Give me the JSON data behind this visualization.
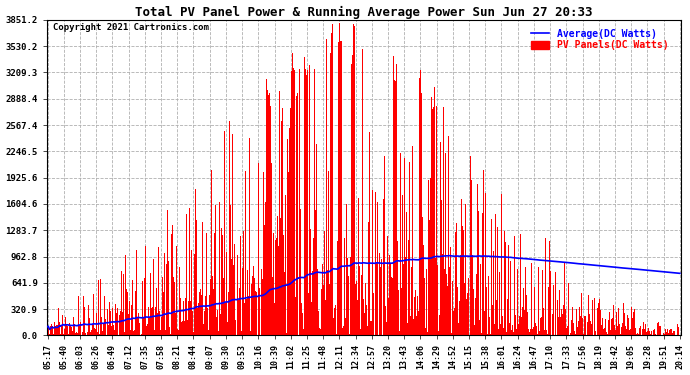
{
  "title": "Total PV Panel Power & Running Average Power Sun Jun 27 20:33",
  "copyright": "Copyright 2021 Cartronics.com",
  "legend_avg": "Average(DC Watts)",
  "legend_pv": "PV Panels(DC Watts)",
  "yticks": [
    0.0,
    320.9,
    641.9,
    962.8,
    1283.7,
    1604.6,
    1925.6,
    2246.5,
    2567.4,
    2888.4,
    3209.3,
    3530.2,
    3851.2
  ],
  "ymax": 3851.2,
  "bg_color": "#ffffff",
  "grid_color": "#b0b0b0",
  "bar_color": "#ff0000",
  "avg_color": "#0000ff",
  "title_color": "#000000",
  "copyright_color": "#000000",
  "legend_avg_color": "#0000ff",
  "legend_pv_color": "#ff0000",
  "xtick_labels": [
    "05:17",
    "05:40",
    "06:03",
    "06:26",
    "06:49",
    "07:12",
    "07:35",
    "07:58",
    "08:21",
    "08:44",
    "09:07",
    "09:30",
    "09:53",
    "10:16",
    "10:39",
    "11:02",
    "11:25",
    "11:48",
    "12:11",
    "12:34",
    "12:57",
    "13:20",
    "13:43",
    "14:06",
    "14:29",
    "14:52",
    "15:15",
    "15:38",
    "16:01",
    "16:24",
    "16:47",
    "17:10",
    "17:33",
    "17:56",
    "18:19",
    "18:42",
    "19:05",
    "19:28",
    "19:51",
    "20:14"
  ]
}
